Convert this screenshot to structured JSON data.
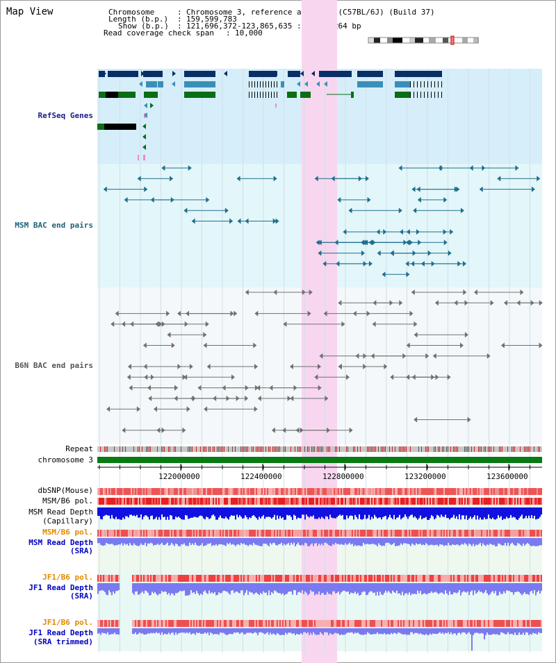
{
  "title": "Map View",
  "info": {
    "chromosome_key": "Chromosome",
    "chromosome_val": "Chromosome 3, reference assembly (C57BL/6J) (Build 37)",
    "length_key": "Length (b.p.)",
    "length_val": "159,599,783",
    "show_key": "Show (b.p.)",
    "show_val": "121,696,372-123,865,635 : 2,169,264 bp",
    "coverage_key": "Read coverage check span",
    "coverage_val": "10,000"
  },
  "tracks": {
    "refseq": "RefSeq Genes",
    "msm_bac": "MSM BAC end pairs",
    "b6n_bac": "B6N BAC end pairs",
    "repeat": "Repeat",
    "chromosome": "chromosome 3",
    "dbsnp": "dbSNP(Mouse)",
    "msm_b6_pol_1": "MSM/B6 pol.",
    "msm_read_depth_cap": "MSM Read Depth",
    "msm_read_depth_cap_sub": "(Capillary)",
    "msm_b6_pol_2": "MSM/B6 pol.",
    "msm_read_depth_sra": "MSM Read Depth",
    "msm_read_depth_sra_sub": "(SRA)",
    "jf1_b6_pol_1": "JF1/B6 pol.",
    "jf1_read_depth_sra": "JF1 Read Depth",
    "jf1_read_depth_sra_sub": "(SRA)",
    "jf1_b6_pol_2": "JF1/B6 pol.",
    "jf1_read_depth_trim": "JF1 Read Depth",
    "jf1_read_depth_trim_sub": "(SRA trimmed)"
  },
  "axis": {
    "ticks": [
      "122000000",
      "122400000",
      "122800000",
      "123200000",
      "123600000"
    ]
  },
  "colors": {
    "refseq_bg": "#d6eefa",
    "msm_bg": "#e3f6fa",
    "b6n_bg": "#f4f8fa",
    "highlight": "#f8d6f0",
    "gene_dark": "#0a2f66",
    "gene_mid": "#3a8fb8",
    "gene_green": "#0a6e14",
    "chrom_green": "#0a7a14",
    "depth_blue": "#1010e0",
    "depth_light": "#7a7af0",
    "pol_red": "#ee3030"
  }
}
